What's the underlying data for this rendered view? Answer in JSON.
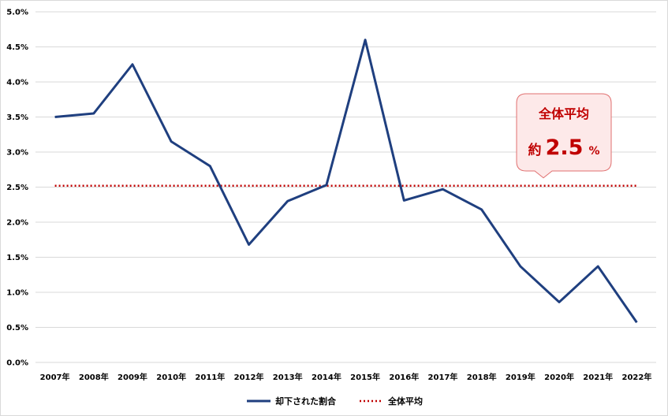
{
  "chart_data": {
    "type": "line",
    "categories": [
      "2007年",
      "2008年",
      "2009年",
      "2010年",
      "2011年",
      "2012年",
      "2013年",
      "2014年",
      "2015年",
      "2016年",
      "2017年",
      "2018年",
      "2019年",
      "2020年",
      "2021年",
      "2022年"
    ],
    "series": [
      {
        "name": "却下された割合",
        "values": [
          3.5,
          3.55,
          4.25,
          3.15,
          2.8,
          1.68,
          2.3,
          2.53,
          4.6,
          2.31,
          2.47,
          2.18,
          1.37,
          0.86,
          1.37,
          0.57
        ],
        "color": "#1f3f7f",
        "style": "solid"
      },
      {
        "name": "全体平均",
        "values": [
          2.52,
          2.52,
          2.52,
          2.52,
          2.52,
          2.52,
          2.52,
          2.52,
          2.52,
          2.52,
          2.52,
          2.52,
          2.52,
          2.52,
          2.52,
          2.52
        ],
        "color": "#c00000",
        "style": "dotted"
      }
    ],
    "ylim": [
      0,
      5
    ],
    "yticks": [
      "0.0%",
      "0.5%",
      "1.0%",
      "1.5%",
      "2.0%",
      "2.5%",
      "3.0%",
      "3.5%",
      "4.0%",
      "4.5%",
      "5.0%"
    ],
    "grid": true,
    "legend_position": "bottom",
    "annotation": {
      "title": "全体平均",
      "prefix": "約",
      "value": "2.5",
      "unit": "%",
      "anchor_category": "2020年",
      "anchor_value": 2.52,
      "fill": "#fde9e9",
      "stroke": "#e07070"
    }
  }
}
